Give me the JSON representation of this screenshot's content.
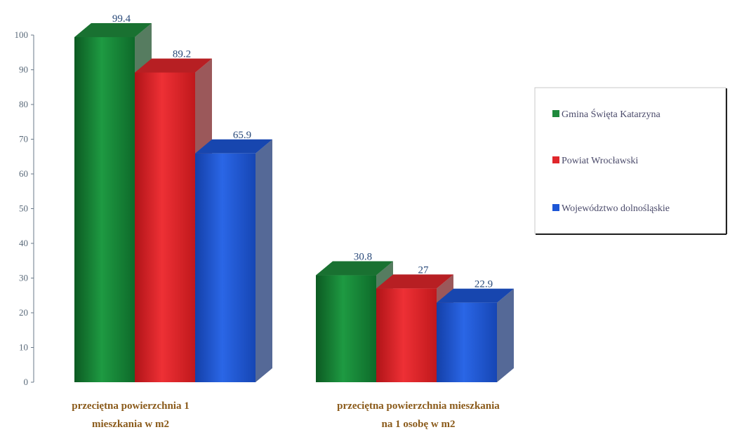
{
  "chart_data": {
    "type": "bar",
    "three_d": true,
    "categories": [
      [
        "przeciętna powierzchnia 1",
        "mieszkania w m2"
      ],
      [
        "przeciętna powierzchnia mieszkania",
        "na 1 osobę w m2"
      ]
    ],
    "series": [
      {
        "name": "Gmina Święta Katarzyna",
        "values": [
          99.4,
          30.8
        ],
        "color": "#1f8a3c",
        "value_labels": [
          "99.4",
          "30.8"
        ]
      },
      {
        "name": "Powiat Wrocławski",
        "values": [
          89.2,
          27
        ],
        "color": "#e0262b",
        "value_labels": [
          "89.2",
          "27"
        ]
      },
      {
        "name": "Województwo dolnośląskie",
        "values": [
          65.9,
          22.9
        ],
        "color": "#1d56d6",
        "value_labels": [
          "65.9",
          "22.9"
        ]
      }
    ],
    "ylim": [
      0,
      100
    ],
    "yticks": [
      "0",
      "10",
      "20",
      "30",
      "40",
      "50",
      "60",
      "70",
      "80",
      "90",
      "100"
    ],
    "legend_position": "right",
    "grid": false
  }
}
